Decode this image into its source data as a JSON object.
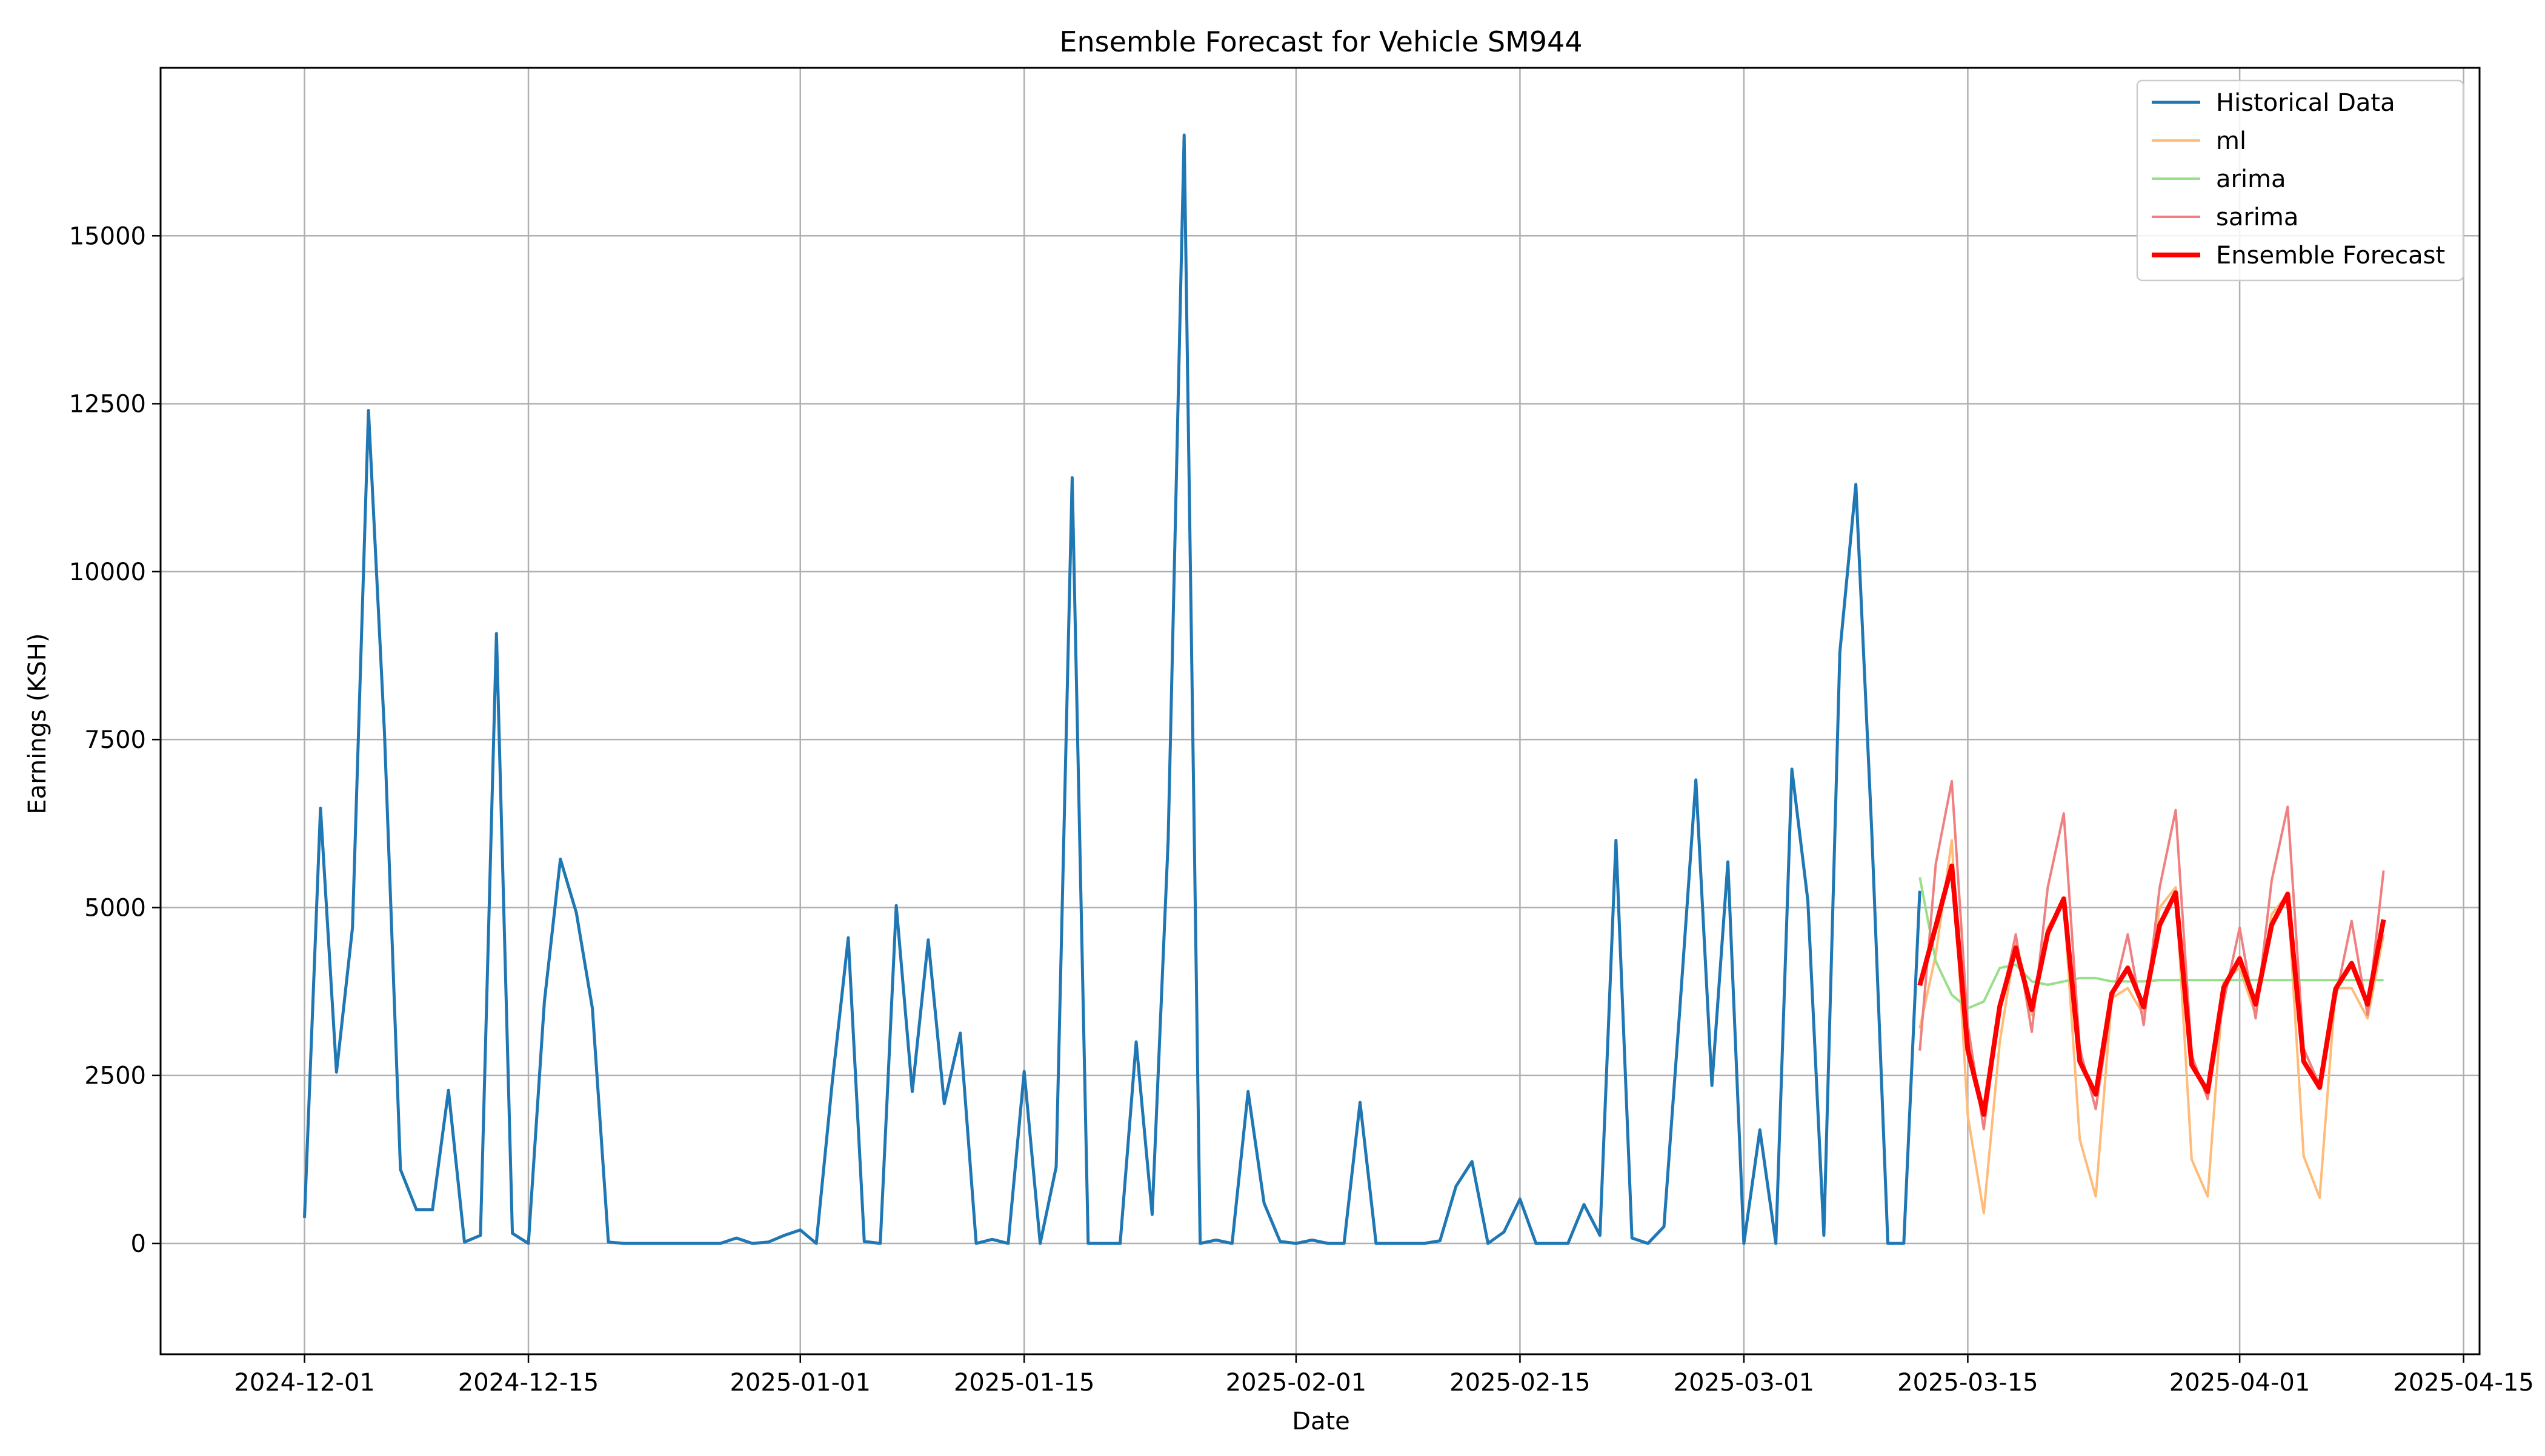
{
  "chart_data": {
    "type": "line",
    "title": "Ensemble Forecast for Vehicle SM944",
    "xlabel": "Date",
    "ylabel": "Earnings (KSH)",
    "x_axis_type": "date",
    "xlim": [
      "2024-11-22",
      "2025-04-16"
    ],
    "ylim": [
      -1650,
      17500
    ],
    "grid": true,
    "legend_position": "top-right",
    "x_ticks": [
      "2024-12-01",
      "2024-12-15",
      "2025-01-01",
      "2025-01-15",
      "2025-02-01",
      "2025-02-15",
      "2025-03-01",
      "2025-03-15",
      "2025-04-01",
      "2025-04-15"
    ],
    "y_ticks": [
      0,
      2500,
      5000,
      7500,
      10000,
      12500,
      15000
    ],
    "legend": [
      "Historical Data",
      "ml",
      "arima",
      "sarima",
      "Ensemble Forecast"
    ],
    "series": [
      {
        "name": "Historical Data",
        "color": "#1f77b4",
        "start_date": "2024-12-01",
        "values": [
          380,
          6480,
          2550,
          4700,
          12400,
          7600,
          1100,
          500,
          500,
          2280,
          20,
          120,
          9080,
          150,
          0,
          3600,
          5720,
          4920,
          3500,
          20,
          0,
          0,
          0,
          0,
          0,
          0,
          0,
          80,
          0,
          20,
          120,
          200,
          0,
          2400,
          4550,
          30,
          0,
          5030,
          2260,
          4520,
          2080,
          3130,
          0,
          60,
          0,
          2560,
          0,
          1140,
          11400,
          0,
          0,
          0,
          3000,
          430,
          6000,
          16500,
          0,
          50,
          0,
          2260,
          600,
          30,
          0,
          50,
          0,
          0,
          2100,
          0,
          0,
          0,
          0,
          40,
          850,
          1220,
          0,
          170,
          660,
          0,
          0,
          0,
          580,
          120,
          6000,
          80,
          0,
          250,
          3500,
          6900,
          2350,
          5680,
          0,
          1690,
          0,
          7060,
          5100,
          120,
          8800,
          11300,
          6100,
          0,
          0,
          5250
        ]
      },
      {
        "name": "ml",
        "color": "#ffbb78",
        "start_date": "2025-03-12",
        "values": [
          3200,
          4300,
          6000,
          1900,
          450,
          3000,
          4500,
          3400,
          4700,
          5100,
          1550,
          700,
          3650,
          3800,
          3400,
          5000,
          5300,
          1250,
          700,
          3900,
          4100,
          3400,
          4900,
          5200,
          1300,
          680,
          3800,
          3800,
          3350,
          4600
        ]
      },
      {
        "name": "arima",
        "color": "#98df8a",
        "start_date": "2025-03-12",
        "values": [
          5450,
          4200,
          3700,
          3500,
          3600,
          4100,
          4150,
          3900,
          3850,
          3900,
          3950,
          3950,
          3900,
          3900,
          3900,
          3920,
          3920,
          3920,
          3920,
          3920,
          3920,
          3920,
          3920,
          3920,
          3920,
          3920,
          3920,
          3920,
          3920,
          3920
        ]
      },
      {
        "name": "sarima",
        "color": "#f08080",
        "start_date": "2025-03-12",
        "values": [
          2870,
          5650,
          6880,
          3250,
          1700,
          3500,
          4600,
          3150,
          5300,
          6400,
          2900,
          2000,
          3600,
          4600,
          3250,
          5300,
          6450,
          2800,
          2150,
          3600,
          4700,
          3350,
          5400,
          6500,
          2900,
          2350,
          3650,
          4800,
          3400,
          5550
        ]
      },
      {
        "name": "Ensemble Forecast",
        "color": "#ff0000",
        "start_date": "2025-03-12",
        "values": [
          3840,
          4720,
          5620,
          2880,
          1920,
          3530,
          4400,
          3480,
          4620,
          5130,
          2710,
          2220,
          3720,
          4100,
          3520,
          4740,
          5220,
          2660,
          2260,
          3810,
          4240,
          3560,
          4740,
          5200,
          2710,
          2320,
          3790,
          4170,
          3560,
          4820
        ]
      }
    ]
  }
}
